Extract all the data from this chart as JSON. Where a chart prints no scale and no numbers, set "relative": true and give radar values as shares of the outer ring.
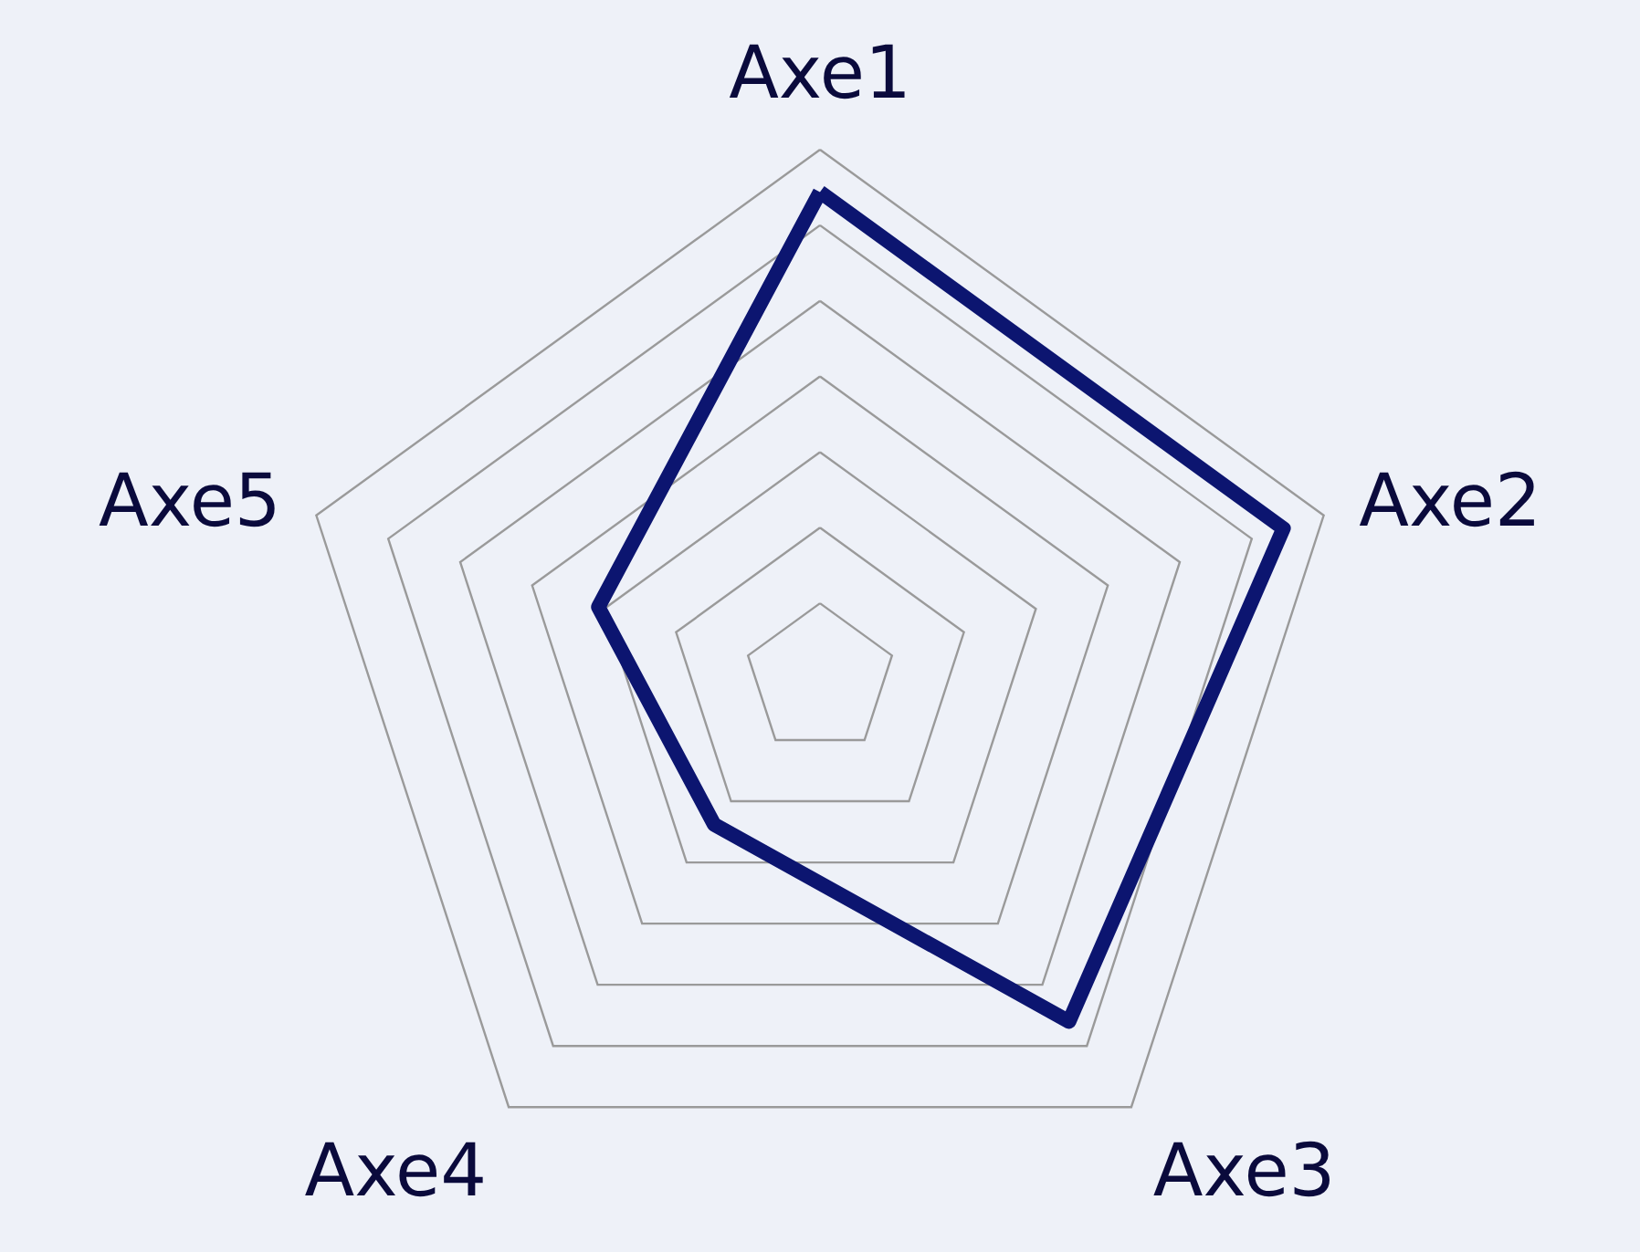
{
  "chart_data": {
    "type": "radar",
    "relative": true,
    "categories": [
      "Axe1",
      "Axe2",
      "Axe3",
      "Axe4",
      "Axe5"
    ],
    "series": [
      {
        "color": "#0c1570",
        "values": [
          0.92,
          0.92,
          0.8,
          0.34,
          0.44
        ]
      }
    ],
    "grid": true,
    "marker": "none",
    "line_style": "solid"
  }
}
